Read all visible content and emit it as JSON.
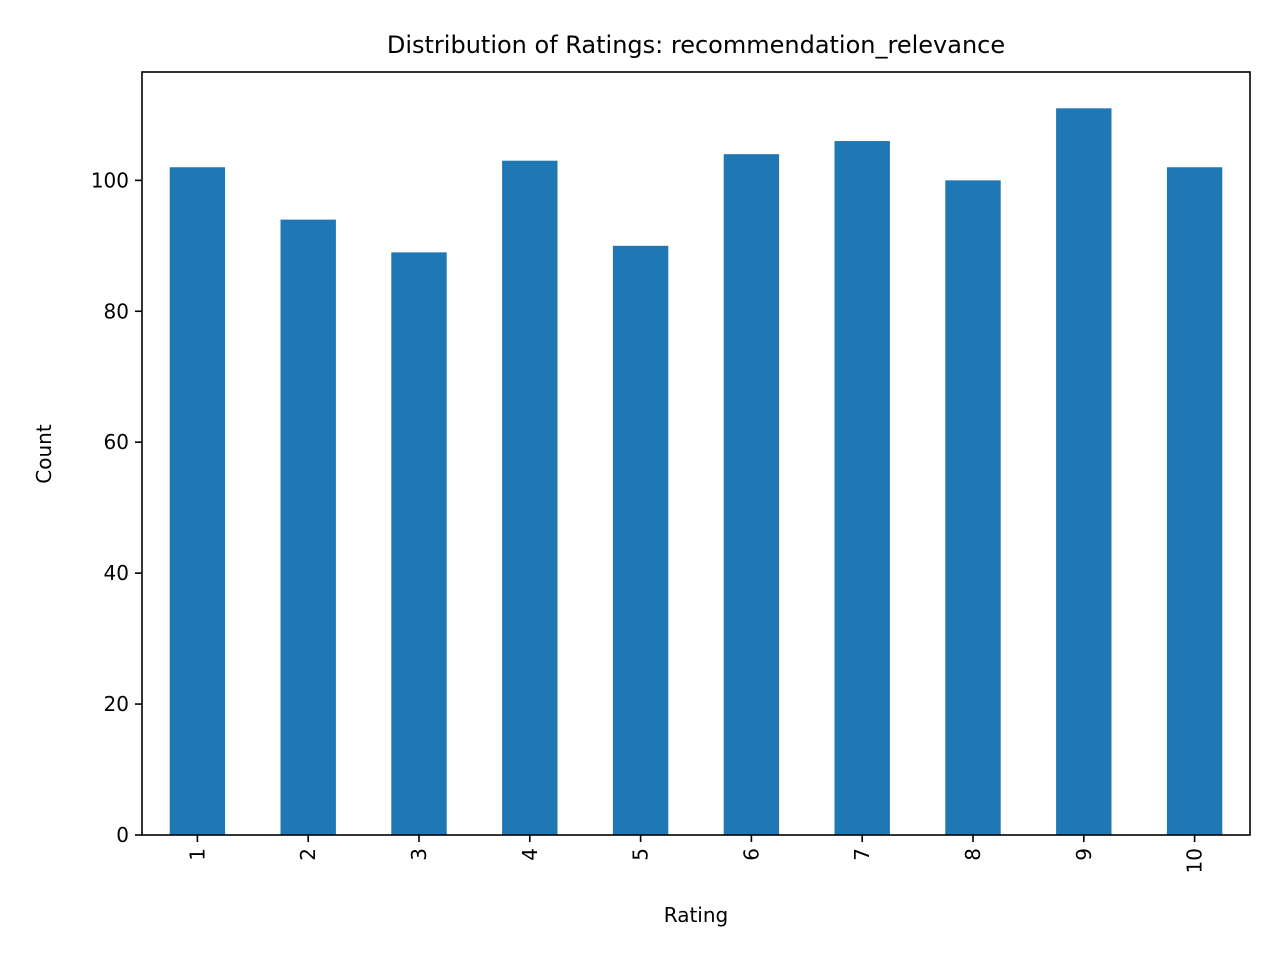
{
  "chart_data": {
    "type": "bar",
    "title": "Distribution of Ratings: recommendation_relevance",
    "xlabel": "Rating",
    "ylabel": "Count",
    "categories": [
      "1",
      "2",
      "3",
      "4",
      "5",
      "6",
      "7",
      "8",
      "9",
      "10"
    ],
    "values": [
      102,
      94,
      89,
      103,
      90,
      104,
      106,
      100,
      111,
      102
    ],
    "ylim": [
      0,
      116.55
    ],
    "yticks": [
      0,
      20,
      40,
      60,
      80,
      100
    ],
    "x_tick_rotation": "vertical",
    "bar_color": "#1f77b4",
    "grid": false,
    "legend": false
  }
}
